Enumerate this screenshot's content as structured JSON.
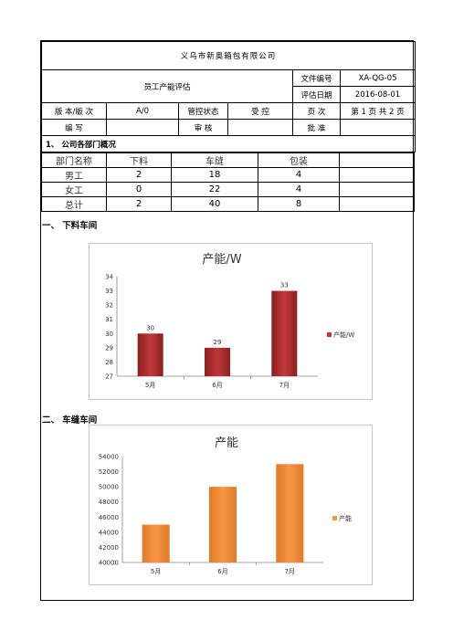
{
  "company": "义乌市新奥箱包有限公司",
  "doc_title": "员工产能评估",
  "header": {
    "file_no_label": "文件编号",
    "file_no": "XA-QG-05",
    "eval_date_label": "评估日期",
    "eval_date": "2016-08-01",
    "version_label": "版 本/版 次",
    "version": "A/0",
    "control_label": "管控状态",
    "control": "受  控",
    "page_label": "页    次",
    "page": "第 1 页 共 2 页",
    "author_label": "编    写",
    "review_label": "审    核",
    "approve_label": "批    准"
  },
  "section1": {
    "title": "1、   公司各部门概况",
    "columns": [
      "部门名称",
      "下料",
      "车缝",
      "包装",
      ""
    ],
    "rows": [
      [
        "男工",
        "2",
        "18",
        "4",
        ""
      ],
      [
        "女工",
        "0",
        "22",
        "4",
        ""
      ],
      [
        "总计",
        "2",
        "40",
        "8",
        ""
      ]
    ]
  },
  "section2_title": "一、   下料车间",
  "section3_title": "二、   车缝车间",
  "chart_data": [
    {
      "type": "bar",
      "title": "产能/W",
      "categories": [
        "5月",
        "6月",
        "7月"
      ],
      "series": [
        {
          "name": "产能/W",
          "values": [
            30,
            29,
            33
          ]
        }
      ],
      "ylim": [
        27,
        34
      ],
      "yticks": [
        27,
        28,
        29,
        30,
        31,
        32,
        33,
        34
      ],
      "data_labels": true,
      "legend": "right",
      "color": "#c0393b"
    },
    {
      "type": "bar",
      "title": "产能",
      "categories": [
        "5月",
        "6月",
        "7月"
      ],
      "series": [
        {
          "name": "产能",
          "values": [
            45000,
            50000,
            53000
          ]
        }
      ],
      "ylim": [
        40000,
        54000
      ],
      "yticks": [
        40000,
        42000,
        44000,
        46000,
        48000,
        50000,
        52000,
        54000
      ],
      "data_labels": false,
      "legend": "right",
      "color": "#f79646"
    }
  ]
}
